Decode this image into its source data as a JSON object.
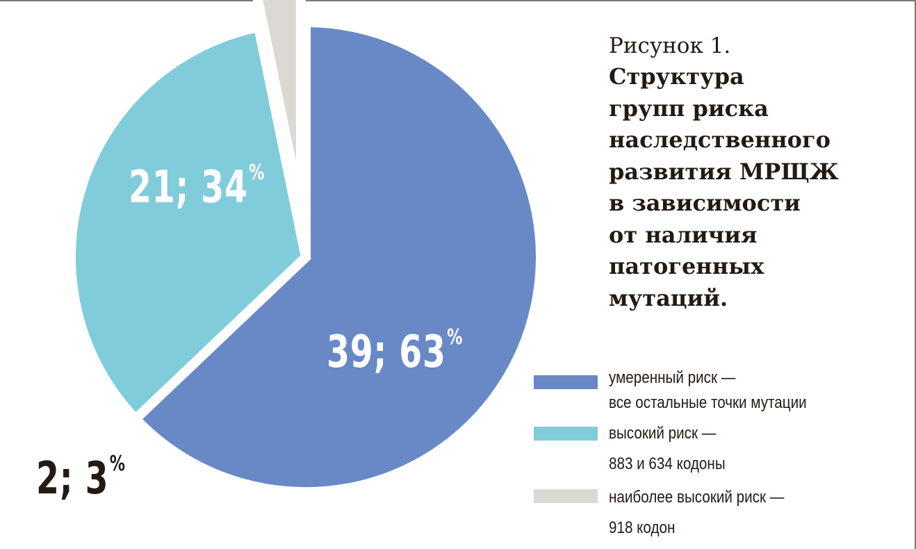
{
  "title": {
    "number": "Рисунок 1.",
    "text": "Структура\nгрупп риска\nнаследственного\nразвития МРЩЖ\nв зависимости\nот наличия\nпатогенных\nмутаций."
  },
  "chart_data": {
    "type": "pie",
    "categories": [
      "умеренный риск",
      "высокий риск",
      "наиболее высокий риск"
    ],
    "values": [
      39,
      21,
      2
    ],
    "percent": [
      63,
      34,
      3
    ],
    "exploded": [
      false,
      false,
      true
    ],
    "labels": [
      {
        "value": "39; 63",
        "unit": "%"
      },
      {
        "value": "21; 34",
        "unit": "%"
      },
      {
        "value": "2; 3",
        "unit": "%"
      }
    ],
    "colors": [
      "#6889c6",
      "#80ccdb",
      "#dcd8d3"
    ],
    "legend": [
      {
        "line1": "умеренный риск —",
        "line2": "все остальные точки мутации"
      },
      {
        "line1": "высокий риск —",
        "line2": "883 и 634 кодоны"
      },
      {
        "line1": "наиболее высокий риск —",
        "line2": "918 кодон"
      }
    ],
    "legend_placement": "bottom-right"
  }
}
